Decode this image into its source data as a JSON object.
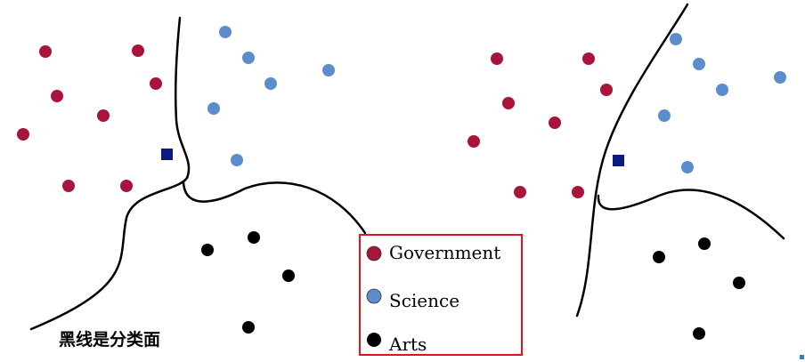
{
  "colors": {
    "government": "#A8143A",
    "science": "#5B8DCC",
    "arts": "#000000",
    "query": "#0A1A80",
    "boundary": "#000000",
    "legend_border": "#E0141E",
    "accent_mark": "#2A7FC9"
  },
  "legend": {
    "items": [
      {
        "label": "Government",
        "class": "government"
      },
      {
        "label": "Science",
        "class": "science"
      },
      {
        "label": "Arts",
        "class": "arts"
      }
    ]
  },
  "caption": "黑线是分类面"
}
